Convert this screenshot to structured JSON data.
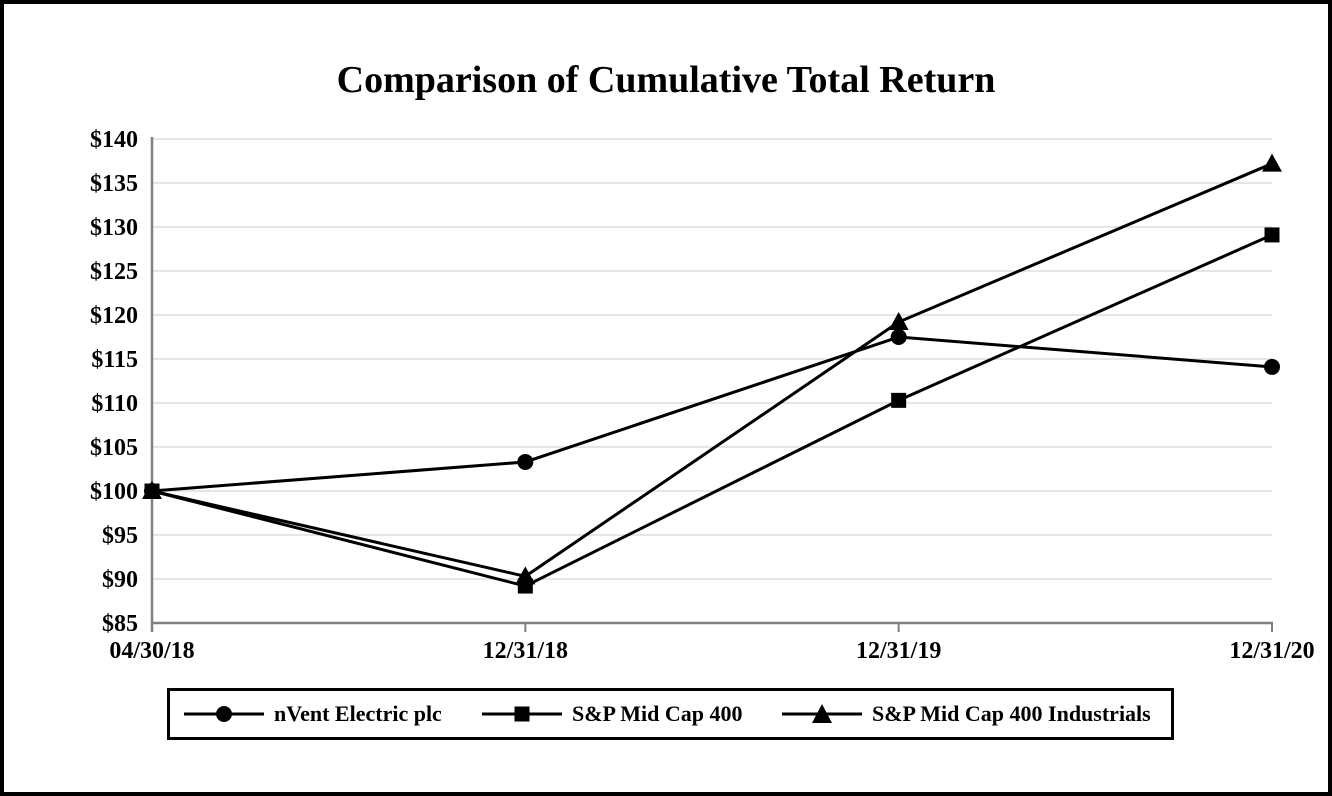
{
  "title": "Comparison of Cumulative Total Return",
  "chart_data": {
    "type": "line",
    "categories": [
      "04/30/18",
      "12/31/18",
      "12/31/19",
      "12/31/20"
    ],
    "series": [
      {
        "name": "nVent Electric plc",
        "marker": "circle",
        "values": [
          100,
          103.3,
          117.5,
          114.1
        ]
      },
      {
        "name": "S&P Mid Cap 400",
        "marker": "square",
        "values": [
          100,
          89.2,
          110.3,
          129.1
        ]
      },
      {
        "name": "S&P Mid Cap 400 Industrials",
        "marker": "triangle",
        "values": [
          100,
          90.3,
          119.2,
          137.2
        ]
      }
    ],
    "title": "Comparison of Cumulative Total Return",
    "xlabel": "",
    "ylabel": "",
    "ylim": [
      85,
      140
    ],
    "y_tick_step": 5,
    "y_tick_labels": [
      "$140",
      "$135",
      "$130",
      "$125",
      "$120",
      "$115",
      "$110",
      "$105",
      "$100",
      "$95",
      "$90",
      "$85"
    ],
    "grid": true,
    "legend_position": "bottom",
    "series_color": "#000000",
    "gridline_color": "#e6e6e6",
    "axis_color": "#808080",
    "text_color": "#000000",
    "background": "#ffffff"
  }
}
